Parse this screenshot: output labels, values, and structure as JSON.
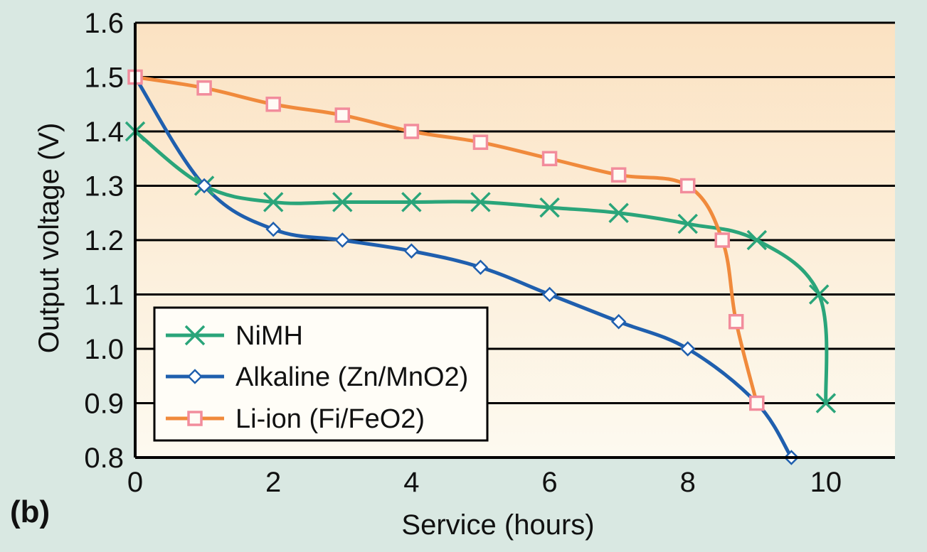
{
  "panel_label": "(b)",
  "chart_data": {
    "type": "line",
    "title": "",
    "xlabel": "Service (hours)",
    "ylabel": "Output voltage (V)",
    "xlim": [
      0,
      11
    ],
    "ylim": [
      0.8,
      1.6
    ],
    "x_ticks": [
      "0",
      "2",
      "4",
      "6",
      "8",
      "10"
    ],
    "x_tick_values": [
      0,
      2,
      4,
      6,
      8,
      10
    ],
    "y_ticks": [
      "0.8",
      "0.9",
      "1.0",
      "1.1",
      "1.2",
      "1.3",
      "1.4",
      "1.5",
      "1.6"
    ],
    "y_tick_values": [
      0.8,
      0.9,
      1.0,
      1.1,
      1.2,
      1.3,
      1.4,
      1.5,
      1.6
    ],
    "grid": "horizontal",
    "legend_position": "bottom-left",
    "background": {
      "top": "#fbe2c2",
      "bottom": "#fdfaf0",
      "outer": "#d9e8e2"
    },
    "series": [
      {
        "name": "NiMH",
        "color": "#2aa57a",
        "marker": "x",
        "x": [
          0,
          1,
          2,
          3,
          4,
          5,
          6,
          7,
          8,
          9,
          9.9,
          10
        ],
        "y": [
          1.4,
          1.3,
          1.27,
          1.27,
          1.27,
          1.27,
          1.26,
          1.25,
          1.23,
          1.2,
          1.1,
          0.9
        ]
      },
      {
        "name": "Alkaline (Zn/MnO2)",
        "color": "#1f5fae",
        "marker": "diamond",
        "x": [
          0,
          1,
          2,
          3,
          4,
          5,
          6,
          7,
          8,
          9,
          9.5
        ],
        "y": [
          1.5,
          1.3,
          1.22,
          1.2,
          1.18,
          1.15,
          1.1,
          1.05,
          1.0,
          0.9,
          0.8
        ]
      },
      {
        "name": "Li-ion (Fi/FeO2)",
        "color": "#f08a3c",
        "marker_color": "#f28c9c",
        "marker": "square",
        "x": [
          0,
          1,
          2,
          3,
          4,
          5,
          6,
          7,
          8,
          8.5,
          8.7,
          9
        ],
        "y": [
          1.5,
          1.48,
          1.45,
          1.43,
          1.4,
          1.38,
          1.35,
          1.32,
          1.3,
          1.2,
          1.05,
          0.9
        ]
      }
    ]
  }
}
